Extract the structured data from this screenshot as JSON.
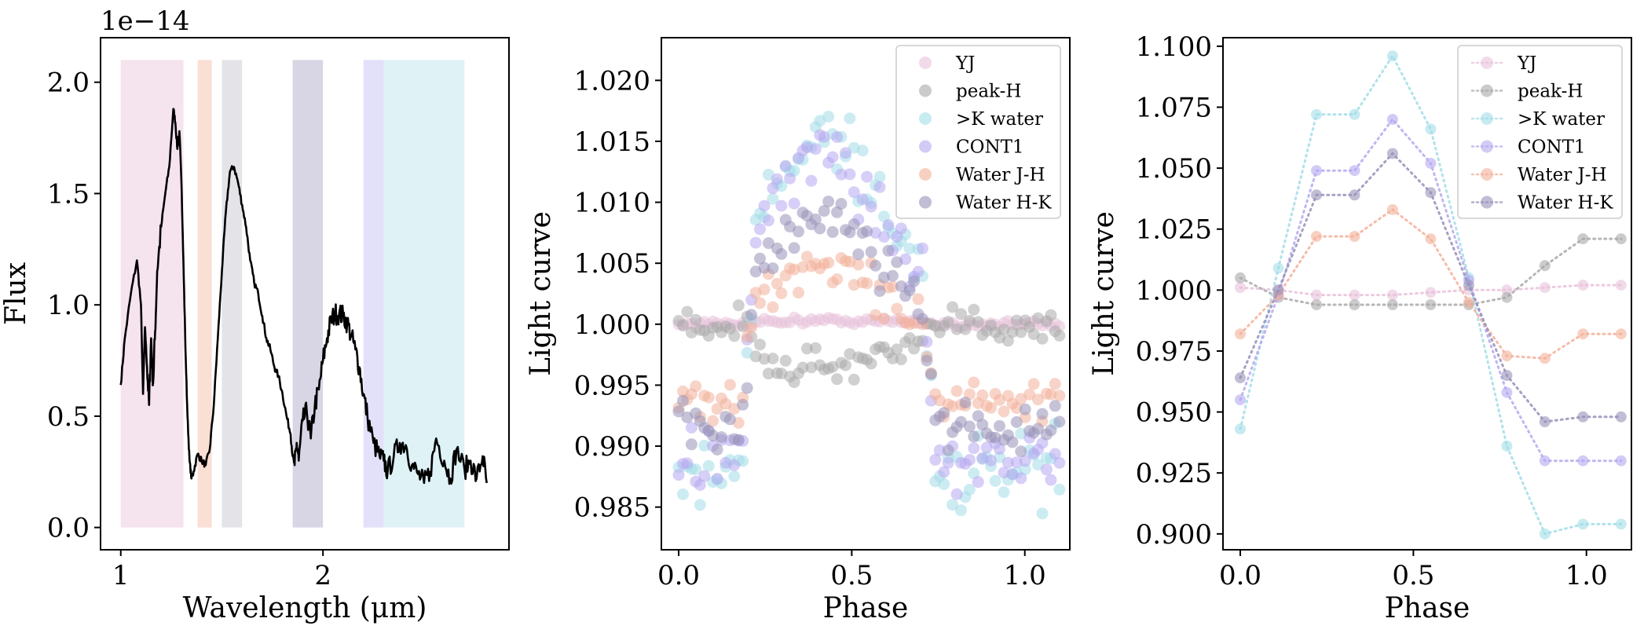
{
  "chart_data": [
    {
      "id": "spectrum",
      "type": "line",
      "title": "",
      "xlabel": "Wavelength (μm)",
      "ylabel": "Flux",
      "sci_label": "1e−14",
      "xlim": [
        0.9,
        2.92
      ],
      "ylim": [
        -0.1,
        2.2
      ],
      "xticks": [
        1,
        2
      ],
      "xtick_labels": [
        "1",
        "2"
      ],
      "yticks": [
        0.0,
        0.5,
        1.0,
        1.5,
        2.0
      ],
      "ytick_labels": [
        "0.0",
        "0.5",
        "1.0",
        "1.5",
        "2.0"
      ],
      "bands": [
        {
          "name": "YJ",
          "x0": 1.0,
          "x1": 1.31,
          "y0": 0.0,
          "y1": 2.1,
          "color": "#e8c2da"
        },
        {
          "name": "Water J-H",
          "x0": 1.38,
          "x1": 1.45,
          "y0": 0.0,
          "y1": 2.1,
          "color": "#f4b9a0"
        },
        {
          "name": "peak-H",
          "x0": 1.5,
          "x1": 1.6,
          "y0": 0.0,
          "y1": 2.1,
          "color": "#c3c4cc"
        },
        {
          "name": "Water H-K",
          "x0": 1.85,
          "x1": 2.0,
          "y0": 0.0,
          "y1": 2.1,
          "color": "#a9a5c6"
        },
        {
          "name": "CONT1",
          "x0": 2.2,
          "x1": 2.3,
          "y0": 0.0,
          "y1": 2.1,
          "color": "#c2baf2"
        },
        {
          "name": ">K water",
          "x0": 2.3,
          "x1": 2.7,
          "y0": 0.0,
          "y1": 2.1,
          "color": "#b8e3ec"
        }
      ],
      "series": [
        {
          "name": "Flux",
          "color": "#000000",
          "x": [
            1.0,
            1.02,
            1.05,
            1.08,
            1.1,
            1.11,
            1.12,
            1.13,
            1.14,
            1.15,
            1.16,
            1.17,
            1.18,
            1.2,
            1.22,
            1.24,
            1.26,
            1.27,
            1.28,
            1.29,
            1.3,
            1.31,
            1.32,
            1.33,
            1.34,
            1.35,
            1.36,
            1.38,
            1.4,
            1.42,
            1.44,
            1.46,
            1.48,
            1.5,
            1.52,
            1.54,
            1.56,
            1.58,
            1.6,
            1.62,
            1.64,
            1.66,
            1.68,
            1.7,
            1.72,
            1.74,
            1.76,
            1.78,
            1.8,
            1.82,
            1.84,
            1.85,
            1.86,
            1.87,
            1.88,
            1.9,
            1.92,
            1.94,
            1.96,
            1.98,
            2.0,
            2.02,
            2.04,
            2.06,
            2.08,
            2.1,
            2.12,
            2.14,
            2.16,
            2.18,
            2.2,
            2.22,
            2.25,
            2.28,
            2.3,
            2.32,
            2.35,
            2.38,
            2.41,
            2.44,
            2.47,
            2.5,
            2.53,
            2.56,
            2.6,
            2.63,
            2.66,
            2.7,
            2.73,
            2.76,
            2.79,
            2.81
          ],
          "y": [
            0.64,
            0.85,
            1.05,
            1.2,
            1.0,
            0.6,
            0.9,
            0.72,
            0.55,
            0.85,
            0.65,
            0.88,
            1.15,
            1.35,
            1.5,
            1.62,
            1.88,
            1.82,
            1.7,
            1.78,
            1.55,
            1.2,
            0.8,
            0.5,
            0.3,
            0.22,
            0.25,
            0.33,
            0.3,
            0.28,
            0.35,
            0.55,
            0.85,
            1.15,
            1.42,
            1.6,
            1.62,
            1.55,
            1.45,
            1.35,
            1.2,
            1.1,
            1.05,
            0.95,
            0.85,
            0.8,
            0.72,
            0.68,
            0.6,
            0.5,
            0.42,
            0.32,
            0.28,
            0.38,
            0.3,
            0.48,
            0.52,
            0.4,
            0.55,
            0.62,
            0.75,
            0.85,
            0.93,
            0.96,
            0.96,
            0.95,
            0.92,
            0.86,
            0.8,
            0.72,
            0.6,
            0.5,
            0.38,
            0.32,
            0.3,
            0.25,
            0.32,
            0.38,
            0.37,
            0.28,
            0.24,
            0.2,
            0.25,
            0.4,
            0.3,
            0.22,
            0.35,
            0.26,
            0.3,
            0.22,
            0.32,
            0.2
          ]
        }
      ]
    },
    {
      "id": "phase-curve",
      "type": "scatter",
      "title": "",
      "xlabel": "Phase",
      "ylabel": "Light curve",
      "xlim": [
        -0.05,
        1.13
      ],
      "ylim": [
        0.9815,
        1.0235
      ],
      "xticks": [
        0.0,
        0.5,
        1.0
      ],
      "xtick_labels": [
        "0.0",
        "0.5",
        "1.0"
      ],
      "yticks": [
        0.985,
        0.99,
        0.995,
        1.0,
        1.005,
        1.01,
        1.015,
        1.02
      ],
      "ytick_labels": [
        "0.985",
        "0.990",
        "0.995",
        "1.000",
        "1.005",
        "1.010",
        "1.015",
        "1.020"
      ],
      "legend_position": "top-right",
      "series": [
        {
          "name": "YJ",
          "color": "#e8c2da",
          "kind": "flat",
          "base": 1.0,
          "amp": 0.0003,
          "scatter": 0.0004
        },
        {
          "name": "peak-H",
          "color": "#a9a9a9",
          "kind": "inverted",
          "base": 1.0,
          "amp": -0.0035,
          "scatter": 0.0011
        },
        {
          "name": ">K water",
          "color": "#a2dde8",
          "kind": "hump",
          "base": 0.9875,
          "amp": 0.0285,
          "scatter": 0.0022
        },
        {
          "name": "CONT1",
          "color": "#b6a8f0",
          "kind": "hump",
          "base": 0.989,
          "amp": 0.025,
          "scatter": 0.0018
        },
        {
          "name": "Water J-H",
          "color": "#f3b09a",
          "kind": "hump",
          "base": 0.9935,
          "amp": 0.0115,
          "scatter": 0.0013
        },
        {
          "name": "Water H-K",
          "color": "#9791b8",
          "kind": "hump",
          "base": 0.9915,
          "amp": 0.0175,
          "scatter": 0.0015
        }
      ]
    },
    {
      "id": "binned-curve",
      "type": "line",
      "title": "",
      "xlabel": "Phase",
      "ylabel": "Light curve",
      "xlim": [
        -0.05,
        1.13
      ],
      "ylim": [
        0.8935,
        1.1035
      ],
      "xticks": [
        0.0,
        0.5,
        1.0
      ],
      "xtick_labels": [
        "0.0",
        "0.5",
        "1.0"
      ],
      "yticks": [
        0.9,
        0.925,
        0.95,
        0.975,
        1.0,
        1.025,
        1.05,
        1.075,
        1.1
      ],
      "ytick_labels": [
        "0.900",
        "0.925",
        "0.950",
        "0.975",
        "1.000",
        "1.025",
        "1.050",
        "1.075",
        "1.100"
      ],
      "legend_position": "top-right",
      "x": [
        0.0,
        0.11,
        0.22,
        0.33,
        0.44,
        0.55,
        0.66,
        0.77,
        0.88,
        0.99,
        1.1
      ],
      "series": [
        {
          "name": "YJ",
          "color": "#e8c2da",
          "values": [
            1.001,
            1.0,
            0.998,
            0.998,
            0.998,
            0.999,
            1.0,
            1.0,
            1.001,
            1.002,
            1.002
          ]
        },
        {
          "name": "peak-H",
          "color": "#a9a9a9",
          "values": [
            1.005,
            0.997,
            0.994,
            0.994,
            0.994,
            0.994,
            0.994,
            0.997,
            1.01,
            1.021,
            1.021
          ]
        },
        {
          "name": ">K water",
          "color": "#a2dde8",
          "values": [
            0.943,
            1.009,
            1.072,
            1.072,
            1.096,
            1.066,
            1.005,
            0.936,
            0.9,
            0.904,
            0.904
          ]
        },
        {
          "name": "CONT1",
          "color": "#b6a8f0",
          "values": [
            0.955,
            0.998,
            1.049,
            1.049,
            1.07,
            1.052,
            1.004,
            0.958,
            0.93,
            0.93,
            0.93
          ]
        },
        {
          "name": "Water J-H",
          "color": "#f3b09a",
          "values": [
            0.982,
            0.998,
            1.022,
            1.022,
            1.033,
            1.021,
            0.995,
            0.973,
            0.972,
            0.982,
            0.982
          ]
        },
        {
          "name": "Water H-K",
          "color": "#9791b8",
          "values": [
            0.964,
            1.0,
            1.039,
            1.039,
            1.056,
            1.04,
            1.002,
            0.965,
            0.946,
            0.948,
            0.948
          ]
        }
      ]
    }
  ]
}
